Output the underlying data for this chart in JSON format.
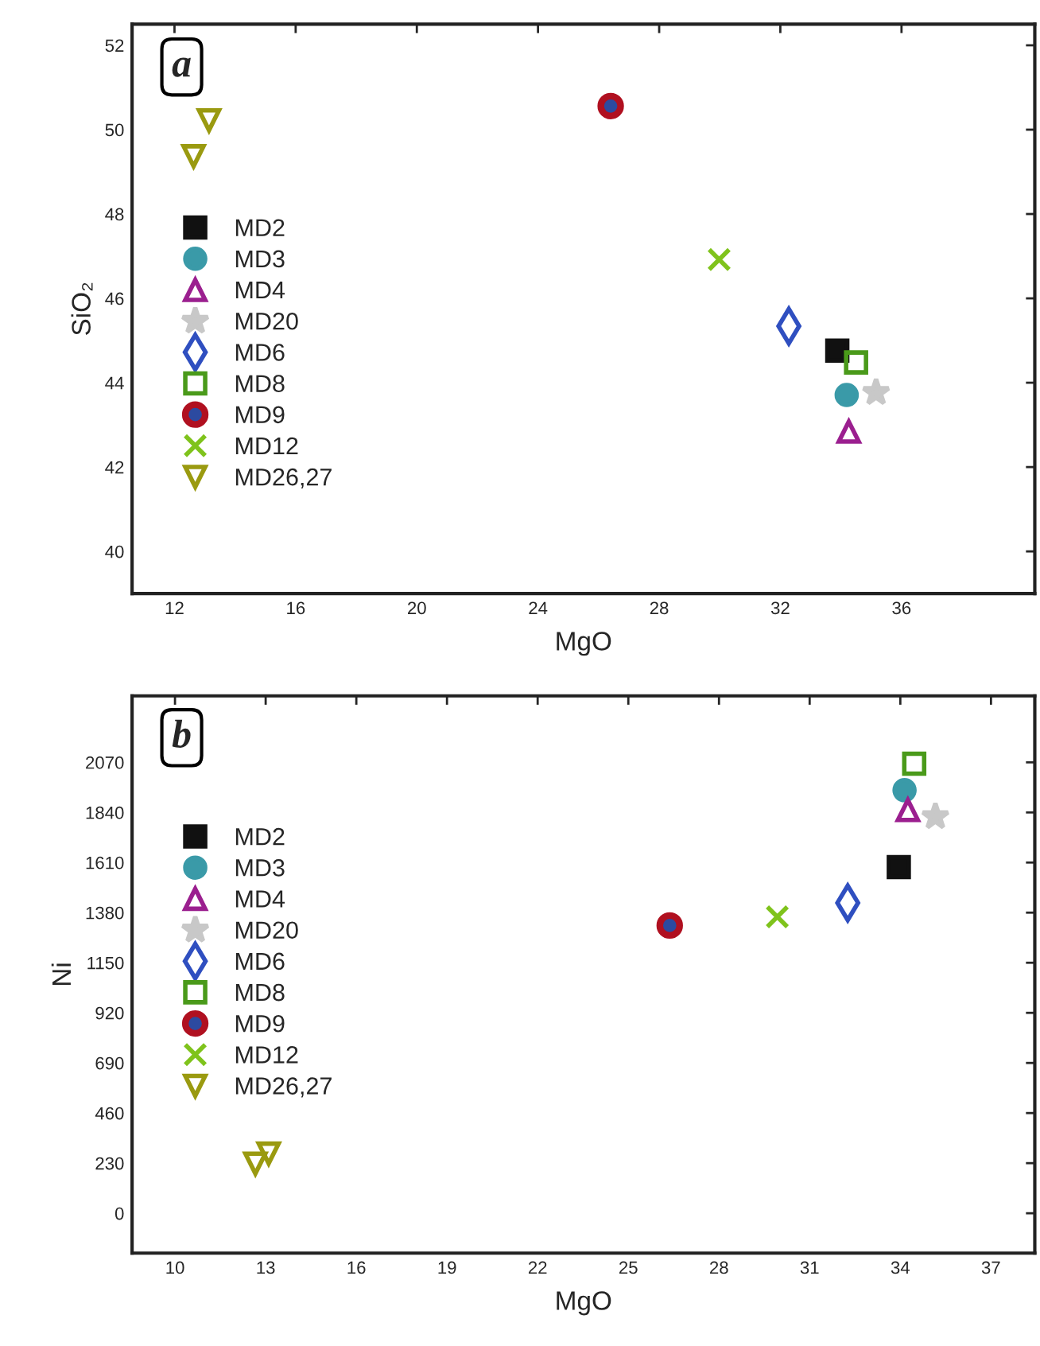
{
  "chart_data": [
    {
      "type": "scatter",
      "xlabel": "MgO",
      "ylabel": "SiO₂",
      "annotations": [
        "a"
      ],
      "xlim": [
        10.6,
        40.4
      ],
      "xticks": [
        12,
        16,
        20,
        24,
        28,
        32,
        36
      ],
      "ylim": [
        39.0,
        52.5
      ],
      "yticks": [
        40,
        42,
        44,
        46,
        48,
        50,
        52
      ],
      "grid": false,
      "legend": "left",
      "series": [
        {
          "name": "MD2",
          "color": "#111111",
          "marker": "square",
          "x": [
            33.88
          ],
          "values": [
            44.76
          ]
        },
        {
          "name": "MD3",
          "color": "#3a9aa8",
          "marker": "circle",
          "x": [
            34.19
          ],
          "values": [
            43.71
          ]
        },
        {
          "name": "MD4",
          "color": "#9b1f8f",
          "marker": "triangle",
          "x": [
            34.26
          ],
          "values": [
            42.84
          ]
        },
        {
          "name": "MD20",
          "color": "#c8c8c8",
          "marker": "star",
          "x": [
            35.16
          ],
          "values": [
            43.77
          ]
        },
        {
          "name": "MD6",
          "color": "#2f4fc0",
          "marker": "diamond",
          "x": [
            32.28
          ],
          "values": [
            45.34
          ]
        },
        {
          "name": "MD8",
          "color": "#4a9a1a",
          "marker": "square",
          "x": [
            34.5
          ],
          "values": [
            44.48
          ]
        },
        {
          "name": "MD9",
          "color": "#2c4aa0",
          "marker": "circle",
          "x": [
            26.4
          ],
          "values": [
            50.56
          ]
        },
        {
          "name": "MD12",
          "color": "#7fc31c",
          "marker": "cross",
          "x": [
            29.98
          ],
          "values": [
            46.92
          ]
        },
        {
          "name": "MD26,27",
          "color": "#9a9a10",
          "marker": "triangle_down",
          "x": [
            12.63,
            13.14
          ],
          "values": [
            49.37,
            50.22
          ]
        }
      ]
    },
    {
      "type": "scatter",
      "xlabel": "MgO",
      "ylabel": "Ni",
      "annotations": [
        "b"
      ],
      "xlim": [
        8.58,
        38.45
      ],
      "xticks": [
        10,
        13,
        16,
        19,
        22,
        25,
        28,
        31,
        34,
        37
      ],
      "ylim": [
        -183,
        2375
      ],
      "yticks": [
        0,
        230,
        460,
        690,
        920,
        1150,
        1380,
        1610,
        1840,
        2070
      ],
      "grid": false,
      "legend": "left",
      "series": [
        {
          "name": "MD2",
          "color": "#111111",
          "marker": "square",
          "x": [
            33.95
          ],
          "values": [
            1589
          ]
        },
        {
          "name": "MD3",
          "color": "#3a9aa8",
          "marker": "circle",
          "x": [
            34.14
          ],
          "values": [
            1942
          ]
        },
        {
          "name": "MD4",
          "color": "#9b1f8f",
          "marker": "triangle",
          "x": [
            34.25
          ],
          "values": [
            1851
          ]
        },
        {
          "name": "MD20",
          "color": "#c8c8c8",
          "marker": "star",
          "x": [
            35.16
          ],
          "values": [
            1821
          ]
        },
        {
          "name": "MD6",
          "color": "#2f4fc0",
          "marker": "diamond",
          "x": [
            32.26
          ],
          "values": [
            1425
          ]
        },
        {
          "name": "MD8",
          "color": "#4a9a1a",
          "marker": "square",
          "x": [
            34.46
          ],
          "values": [
            2064
          ]
        },
        {
          "name": "MD9",
          "color": "#2c4aa0",
          "marker": "circle",
          "x": [
            26.37
          ],
          "values": [
            1321
          ]
        },
        {
          "name": "MD12",
          "color": "#7fc31c",
          "marker": "cross",
          "x": [
            29.93
          ],
          "values": [
            1361
          ]
        },
        {
          "name": "MD26,27",
          "color": "#9a9a10",
          "marker": "triangle_down",
          "x": [
            12.66,
            13.1
          ],
          "values": [
            228,
            274
          ]
        }
      ]
    }
  ]
}
